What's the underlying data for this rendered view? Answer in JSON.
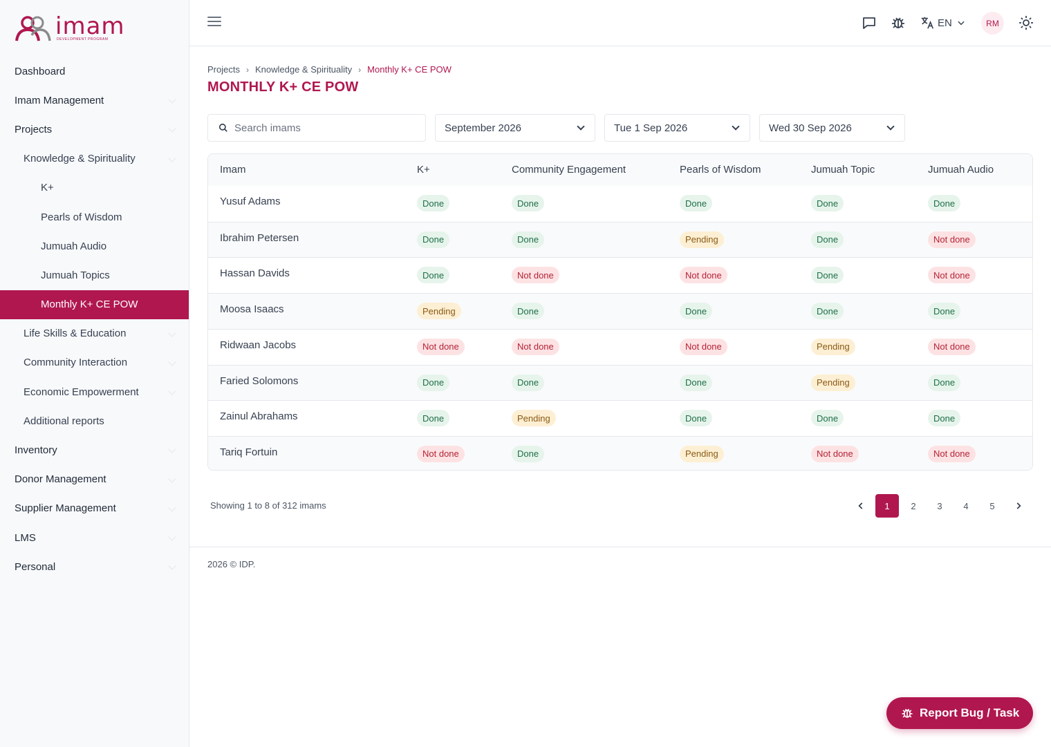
{
  "brand": {
    "name": "imam",
    "subtitle": "DEVELOPMENT PROGRAM",
    "color": "#b0174f"
  },
  "sidebar": {
    "items": [
      {
        "label": "Dashboard",
        "level": 1,
        "active": false,
        "expandable": false
      },
      {
        "label": "Imam Management",
        "level": 1,
        "active": false,
        "expandable": true
      },
      {
        "label": "Projects",
        "level": 1,
        "active": false,
        "expandable": true
      },
      {
        "label": "Knowledge & Spirituality",
        "level": 2,
        "active": false,
        "expandable": true
      },
      {
        "label": "K+",
        "level": 3,
        "active": false,
        "expandable": false
      },
      {
        "label": "Pearls of Wisdom",
        "level": 3,
        "active": false,
        "expandable": false
      },
      {
        "label": "Jumuah Audio",
        "level": 3,
        "active": false,
        "expandable": false
      },
      {
        "label": "Jumuah Topics",
        "level": 3,
        "active": false,
        "expandable": false
      },
      {
        "label": "Monthly K+ CE POW",
        "level": 3,
        "active": true,
        "expandable": false
      },
      {
        "label": "Life Skills & Education",
        "level": 2,
        "active": false,
        "expandable": true
      },
      {
        "label": "Community Interaction",
        "level": 2,
        "active": false,
        "expandable": true
      },
      {
        "label": "Economic Empowerment",
        "level": 2,
        "active": false,
        "expandable": true
      },
      {
        "label": "Additional reports",
        "level": 2,
        "active": false,
        "expandable": false
      },
      {
        "label": "Inventory",
        "level": 1,
        "active": false,
        "expandable": true
      },
      {
        "label": "Donor Management",
        "level": 1,
        "active": false,
        "expandable": true
      },
      {
        "label": "Supplier Management",
        "level": 1,
        "active": false,
        "expandable": true
      },
      {
        "label": "LMS",
        "level": 1,
        "active": false,
        "expandable": true
      },
      {
        "label": "Personal",
        "level": 1,
        "active": false,
        "expandable": true
      }
    ]
  },
  "topbar": {
    "icons": [
      "menu-icon",
      "chat-icon",
      "bug-icon",
      "translate-icon",
      "sun-icon"
    ],
    "language": "EN",
    "avatar_initials": "RM"
  },
  "breadcrumb": [
    "Projects",
    "Knowledge & Spirituality",
    "Monthly K+ CE POW"
  ],
  "page_title": "MONTHLY K+ CE POW",
  "filters": {
    "search_placeholder": "Search imams",
    "month": "September 2026",
    "start_date": "Tue 1 Sep 2026",
    "end_date": "Wed 30 Sep 2026"
  },
  "table": {
    "columns": [
      "Imam",
      "K+",
      "Community Engagement",
      "Pearls of Wisdom",
      "Jumuah Topic",
      "Jumuah Audio"
    ],
    "rows": [
      {
        "name": "Yusuf Adams",
        "cells": [
          "Done",
          "Done",
          "Done",
          "Done",
          "Done"
        ]
      },
      {
        "name": "Ibrahim Petersen",
        "cells": [
          "Done",
          "Done",
          "Pending",
          "Done",
          "Not done"
        ]
      },
      {
        "name": "Hassan Davids",
        "cells": [
          "Done",
          "Not done",
          "Not done",
          "Done",
          "Not done"
        ]
      },
      {
        "name": "Moosa Isaacs",
        "cells": [
          "Pending",
          "Done",
          "Done",
          "Done",
          "Done"
        ]
      },
      {
        "name": "Ridwaan Jacobs",
        "cells": [
          "Not done",
          "Not done",
          "Not done",
          "Pending",
          "Not done"
        ]
      },
      {
        "name": "Faried Solomons",
        "cells": [
          "Done",
          "Done",
          "Done",
          "Pending",
          "Done"
        ]
      },
      {
        "name": "Zainul Abrahams",
        "cells": [
          "Done",
          "Pending",
          "Done",
          "Done",
          "Done"
        ]
      },
      {
        "name": "Tariq Fortuin",
        "cells": [
          "Not done",
          "Done",
          "Pending",
          "Not done",
          "Not done"
        ]
      }
    ]
  },
  "status_colors": {
    "Done": "#1f6f46",
    "Pending": "#8a5a14",
    "Not done": "#b42335"
  },
  "pagination": {
    "summary": "Showing 1 to 8 of 312 imams",
    "pages": [
      "1",
      "2",
      "3",
      "4",
      "5"
    ],
    "current": "1"
  },
  "footer": "2026 © IDP.",
  "fab_label": "Report Bug / Task"
}
